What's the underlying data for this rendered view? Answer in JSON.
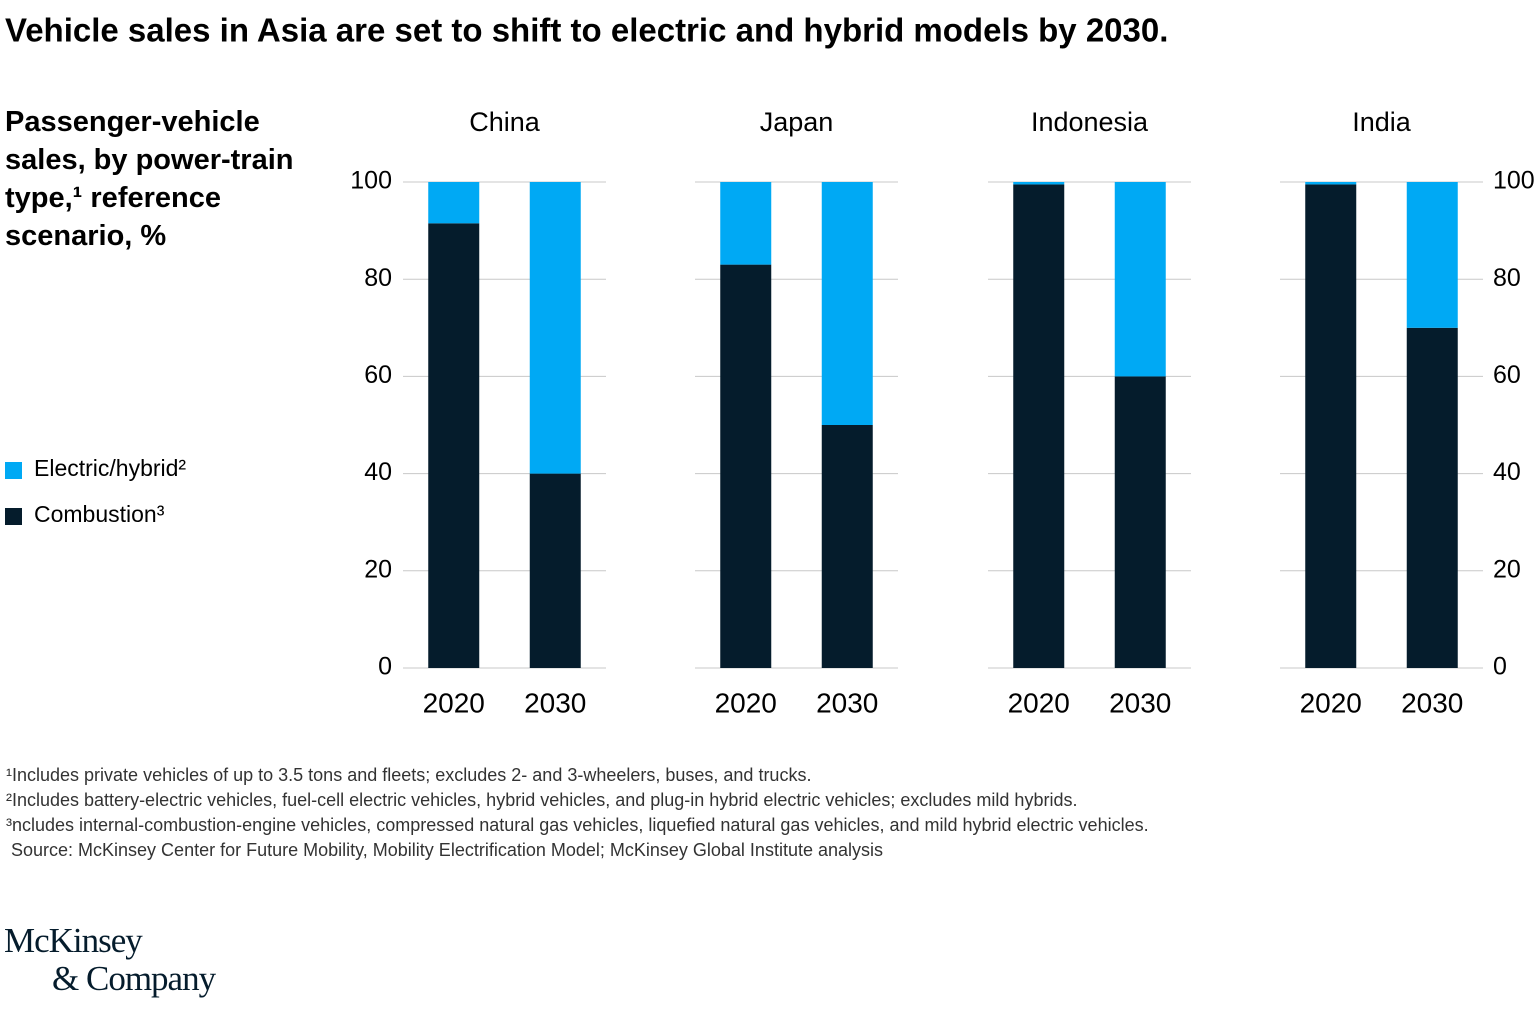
{
  "title": "Vehicle sales in Asia are set to shift to electric and hybrid models by 2030.",
  "subtitle": "Passenger-vehicle sales, by power-train type,¹ reference scenario, %",
  "footnotes": [
    "¹Includes private vehicles of up to 3.5 tons and fleets; excludes 2- and 3-wheelers, buses, and trucks.",
    "²Includes battery-electric vehicles, fuel-cell electric vehicles, hybrid vehicles, and plug-in hybrid electric vehicles; excludes mild hybrids.",
    "³ncludes internal-combustion-engine vehicles, compressed natural gas vehicles, liquefied natural gas vehicles, and mild hybrid electric vehicles.",
    " Source: McKinsey Center for Future Mobility, Mobility Electrification Model; McKinsey Global Institute analysis"
  ],
  "logo": [
    "McKinsey",
    "& Company"
  ],
  "chart_data": [
    {
      "type": "bar",
      "stacked": true,
      "title": "China",
      "categories": [
        "2020",
        "2030"
      ],
      "series": [
        {
          "name": "Combustion³",
          "color": "#051c2c",
          "values": [
            91.5,
            40
          ]
        },
        {
          "name": "Electric/hybrid²",
          "color": "#00a9f4",
          "values": [
            8.5,
            60
          ]
        }
      ],
      "ylim": [
        0,
        100
      ],
      "yticks": [
        0,
        20,
        40,
        60,
        80,
        100
      ],
      "ytick_side": "left",
      "grid": true
    },
    {
      "type": "bar",
      "stacked": true,
      "title": "Japan",
      "categories": [
        "2020",
        "2030"
      ],
      "series": [
        {
          "name": "Combustion³",
          "color": "#051c2c",
          "values": [
            83,
            50
          ]
        },
        {
          "name": "Electric/hybrid²",
          "color": "#00a9f4",
          "values": [
            17,
            50
          ]
        }
      ],
      "ylim": [
        0,
        100
      ],
      "yticks": [
        0,
        20,
        40,
        60,
        80,
        100
      ],
      "ytick_side": "none",
      "grid": true
    },
    {
      "type": "bar",
      "stacked": true,
      "title": "Indonesia",
      "categories": [
        "2020",
        "2030"
      ],
      "series": [
        {
          "name": "Combustion³",
          "color": "#051c2c",
          "values": [
            99.5,
            60
          ]
        },
        {
          "name": "Electric/hybrid²",
          "color": "#00a9f4",
          "values": [
            0.5,
            40
          ]
        }
      ],
      "ylim": [
        0,
        100
      ],
      "yticks": [
        0,
        20,
        40,
        60,
        80,
        100
      ],
      "ytick_side": "none",
      "grid": true
    },
    {
      "type": "bar",
      "stacked": true,
      "title": "India",
      "categories": [
        "2020",
        "2030"
      ],
      "series": [
        {
          "name": "Combustion³",
          "color": "#051c2c",
          "values": [
            99.5,
            70
          ]
        },
        {
          "name": "Electric/hybrid²",
          "color": "#00a9f4",
          "values": [
            0.5,
            30
          ]
        }
      ],
      "ylim": [
        0,
        100
      ],
      "yticks": [
        0,
        20,
        40,
        60,
        80,
        100
      ],
      "ytick_side": "right",
      "grid": true
    }
  ]
}
